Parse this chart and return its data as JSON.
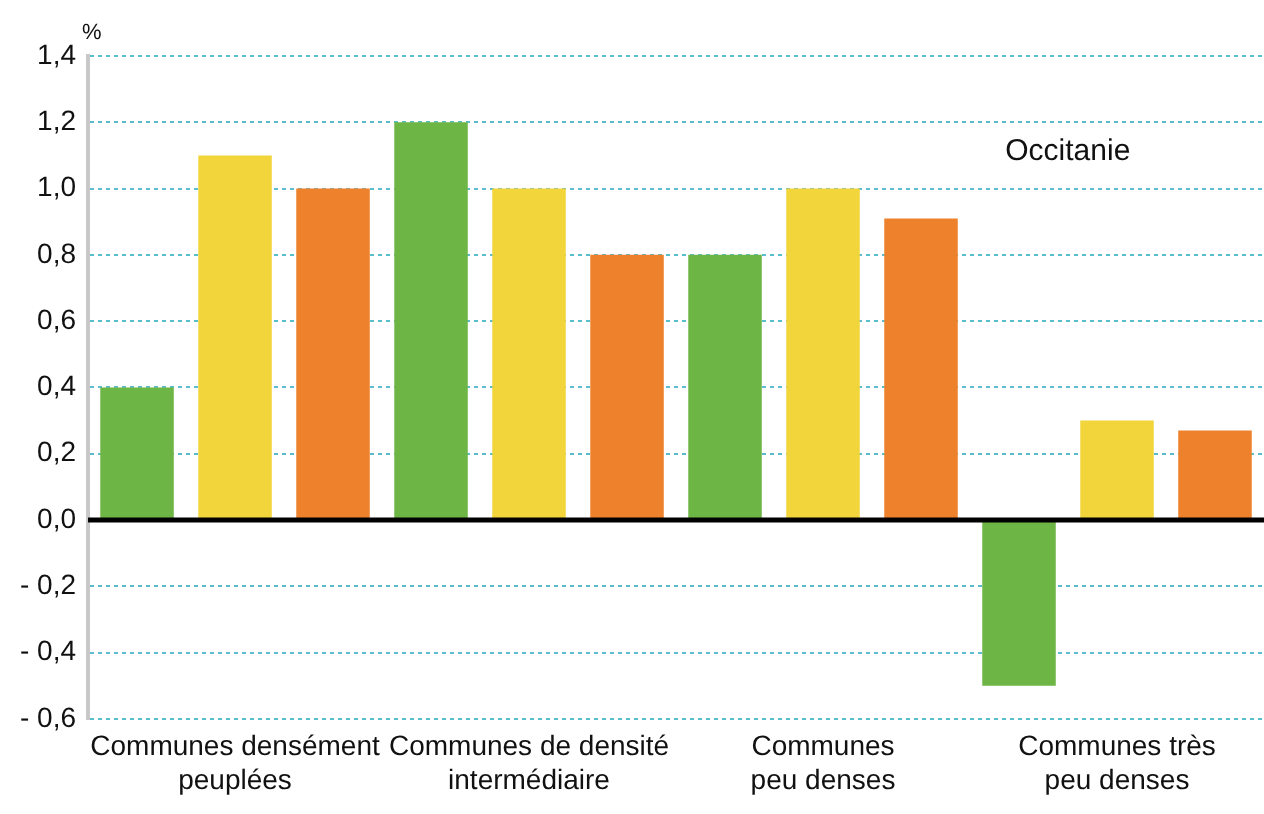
{
  "chart_data": {
    "type": "bar",
    "ylabel": "%",
    "annotations": [
      "Occitanie"
    ],
    "categories": [
      "Communes densément\npeuplées",
      "Communes de densité\nintermédiaire",
      "Communes\npeu denses",
      "Communes très\npeu denses"
    ],
    "series": [
      {
        "color": "#6db545",
        "values": [
          0.4,
          1.2,
          0.8,
          -0.5
        ]
      },
      {
        "color": "#f2d43b",
        "values": [
          1.1,
          1.0,
          1.0,
          0.3
        ]
      },
      {
        "color": "#ee812b",
        "values": [
          1.0,
          0.8,
          0.91,
          0.27
        ]
      }
    ],
    "ylim": [
      -0.6,
      1.4
    ],
    "yticks": [
      {
        "value": -0.6,
        "label": "- 0,6"
      },
      {
        "value": -0.4,
        "label": "- 0,4"
      },
      {
        "value": -0.2,
        "label": "- 0,2"
      },
      {
        "value": 0,
        "label": "0,0"
      },
      {
        "value": 0.2,
        "label": "0,2"
      },
      {
        "value": 0.4,
        "label": "0,4"
      },
      {
        "value": 0.6,
        "label": "0,6"
      },
      {
        "value": 0.8,
        "label": "0,8"
      },
      {
        "value": 1.0,
        "label": "1,0"
      },
      {
        "value": 1.2,
        "label": "1,2"
      },
      {
        "value": 1.4,
        "label": "1,4"
      }
    ],
    "grid": "y",
    "legend": false,
    "ref_lines": [
      {
        "axis": "y",
        "value": 0,
        "color": "#000000"
      }
    ]
  }
}
